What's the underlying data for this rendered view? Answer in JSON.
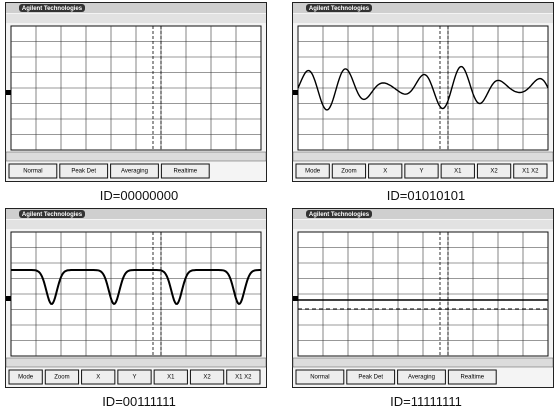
{
  "panels": [
    {
      "brand": "Agilent Technologies",
      "buttons": [
        "Normal",
        "Peak Det",
        "Averaging",
        "Realtime"
      ],
      "caption": "ID=00000000"
    },
    {
      "brand": "Agilent Technologies",
      "buttons": [
        "Mode",
        "Zoom",
        "X",
        "Y",
        "X1",
        "X2",
        "X1 X2"
      ],
      "caption": "ID=01010101"
    },
    {
      "brand": "Agilent Technologies",
      "buttons": [
        "Mode",
        "Zoom",
        "X",
        "Y",
        "X1",
        "X2",
        "X1 X2"
      ],
      "caption": "ID=00111111"
    },
    {
      "brand": "Agilent Technologies",
      "buttons": [
        "Normal",
        "Peak Det",
        "Averaging",
        "Realtime"
      ],
      "caption": "ID=11111111"
    }
  ]
}
